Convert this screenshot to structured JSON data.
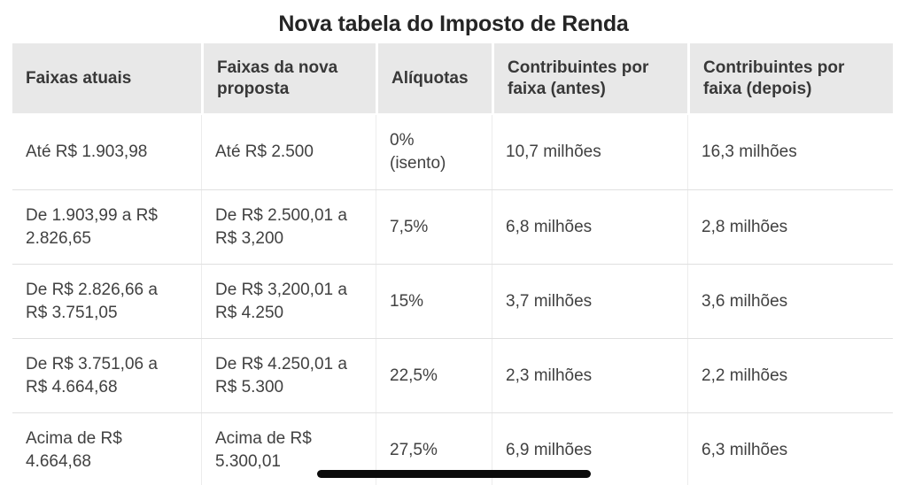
{
  "page": {
    "title": "Nova tabela do Imposto de Renda"
  },
  "chart_data": {
    "type": "table",
    "title": "Nova tabela do Imposto de Renda",
    "columns": [
      "Faixas atuais",
      "Faixas da nova proposta",
      "Alíquotas",
      "Contribuintes por faixa (antes)",
      "Contribuintes por faixa (depois)"
    ],
    "rows": [
      [
        "Até R$ 1.903,98",
        "Até R$ 2.500",
        "0%\n(isento)",
        "10,7 milhões",
        "16,3 milhões"
      ],
      [
        "De 1.903,99 a R$ 2.826,65",
        "De R$ 2.500,01 a R$ 3,200",
        "7,5%",
        "6,8 milhões",
        "2,8 milhões"
      ],
      [
        "De R$ 2.826,66 a R$ 3.751,05",
        "De R$ 3,200,01 a R$ 4.250",
        "15%",
        "3,7 milhões",
        "3,6 milhões"
      ],
      [
        "De R$ 3.751,06 a R$ 4.664,68",
        "De R$ 4.250,01 a R$ 5.300",
        "22,5%",
        "2,3 milhões",
        "2,2 milhões"
      ],
      [
        "Acima de R$ 4.664,68",
        "Acima de R$ 5.300,01",
        "27,5%",
        "6,9 milhões",
        "6,3 milhões"
      ]
    ],
    "layout": {
      "legend": "none",
      "grid": "row-and-column-separators",
      "header_position": "top"
    },
    "colors": {
      "header_background": "#e8e8e8",
      "row_background": "#ffffff",
      "divider": "#e0e0e0",
      "title_text": "#252525",
      "body_text": "#414141",
      "scrollbar_thumb": "#0b0b0b"
    }
  }
}
